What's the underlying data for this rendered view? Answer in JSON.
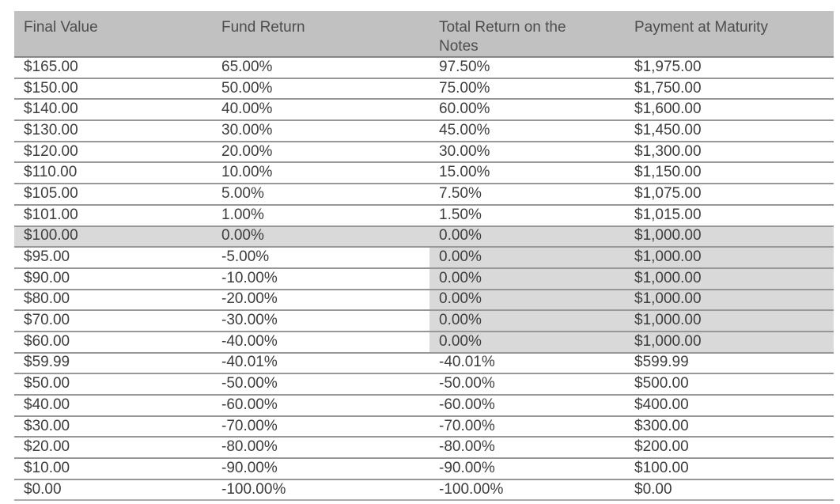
{
  "colors": {
    "header_bg": "#c1c1c1",
    "highlight_bg": "#d9d9d9",
    "row_border": "#979797",
    "header_border": "#858585",
    "body_text": "#3d3d3d",
    "header_text": "#4d4d4d",
    "page_bg": "#ffffff"
  },
  "table": {
    "columns": [
      {
        "label": "Final Value"
      },
      {
        "label": "Fund Return"
      },
      {
        "label": "Total Return on the Notes"
      },
      {
        "label": "Payment at Maturity"
      }
    ],
    "rows": [
      {
        "cells": [
          "$165.00",
          "65.00%",
          "97.50%",
          "$1,975.00"
        ],
        "highlight": "none"
      },
      {
        "cells": [
          "$150.00",
          "50.00%",
          "75.00%",
          "$1,750.00"
        ],
        "highlight": "none"
      },
      {
        "cells": [
          "$140.00",
          "40.00%",
          "60.00%",
          "$1,600.00"
        ],
        "highlight": "none"
      },
      {
        "cells": [
          "$130.00",
          "30.00%",
          "45.00%",
          "$1,450.00"
        ],
        "highlight": "none"
      },
      {
        "cells": [
          "$120.00",
          "20.00%",
          "30.00%",
          "$1,300.00"
        ],
        "highlight": "none"
      },
      {
        "cells": [
          "$110.00",
          "10.00%",
          "15.00%",
          "$1,150.00"
        ],
        "highlight": "none"
      },
      {
        "cells": [
          "$105.00",
          "5.00%",
          "7.50%",
          "$1,075.00"
        ],
        "highlight": "none"
      },
      {
        "cells": [
          "$101.00",
          "1.00%",
          "1.50%",
          "$1,015.00"
        ],
        "highlight": "none"
      },
      {
        "cells": [
          "$100.00",
          "0.00%",
          "0.00%",
          "$1,000.00"
        ],
        "highlight": "row"
      },
      {
        "cells": [
          "$95.00",
          "-5.00%",
          "0.00%",
          "$1,000.00"
        ],
        "highlight": "notes"
      },
      {
        "cells": [
          "$90.00",
          "-10.00%",
          "0.00%",
          "$1,000.00"
        ],
        "highlight": "notes"
      },
      {
        "cells": [
          "$80.00",
          "-20.00%",
          "0.00%",
          "$1,000.00"
        ],
        "highlight": "notes"
      },
      {
        "cells": [
          "$70.00",
          "-30.00%",
          "0.00%",
          "$1,000.00"
        ],
        "highlight": "notes"
      },
      {
        "cells": [
          "$60.00",
          "-40.00%",
          "0.00%",
          "$1,000.00"
        ],
        "highlight": "notes"
      },
      {
        "cells": [
          "$59.99",
          "-40.01%",
          "-40.01%",
          "$599.99"
        ],
        "highlight": "none"
      },
      {
        "cells": [
          "$50.00",
          "-50.00%",
          "-50.00%",
          "$500.00"
        ],
        "highlight": "none"
      },
      {
        "cells": [
          "$40.00",
          "-60.00%",
          "-60.00%",
          "$400.00"
        ],
        "highlight": "none"
      },
      {
        "cells": [
          "$30.00",
          "-70.00%",
          "-70.00%",
          "$300.00"
        ],
        "highlight": "none"
      },
      {
        "cells": [
          "$20.00",
          "-80.00%",
          "-80.00%",
          "$200.00"
        ],
        "highlight": "none"
      },
      {
        "cells": [
          "$10.00",
          "-90.00%",
          "-90.00%",
          "$100.00"
        ],
        "highlight": "none"
      },
      {
        "cells": [
          "$0.00",
          "-100.00%",
          "-100.00%",
          "$0.00"
        ],
        "highlight": "none"
      }
    ]
  }
}
